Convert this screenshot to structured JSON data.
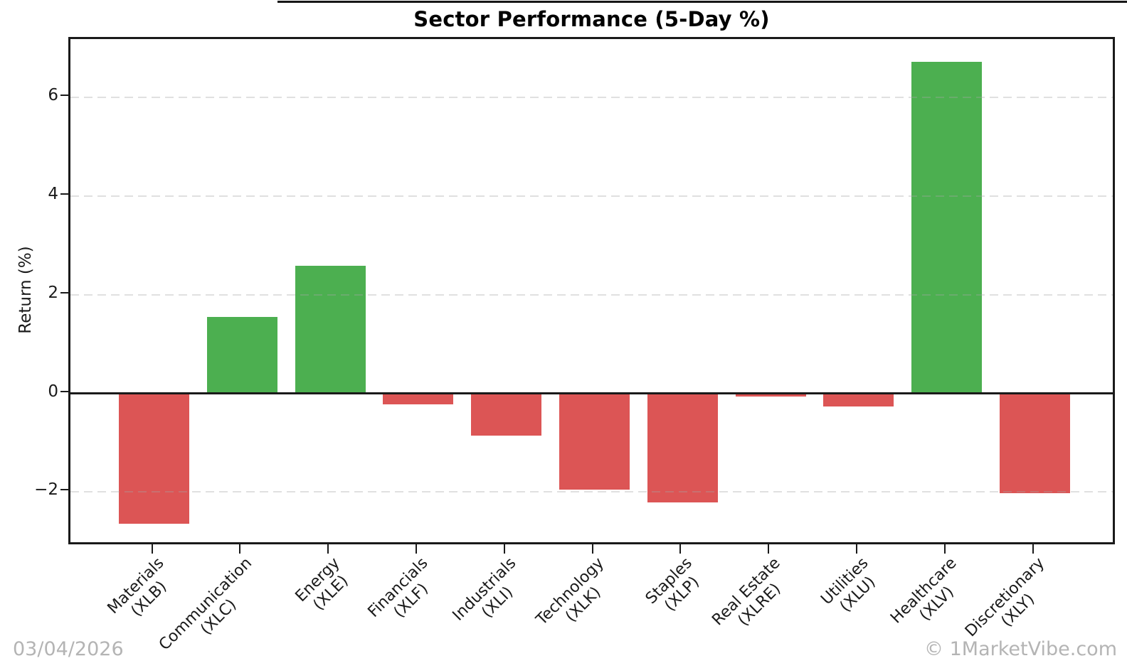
{
  "chart_data": {
    "type": "bar",
    "title": "Sector Performance (5-Day %)",
    "xlabel": "",
    "ylabel": "Return (%)",
    "categories": [
      "Materials",
      "Communication",
      "Energy",
      "Financials",
      "Industrials",
      "Technology",
      "Staples",
      "Real Estate",
      "Utilities",
      "Healthcare",
      "Discretionary"
    ],
    "tickers": [
      "(XLB)",
      "(XLC)",
      "(XLE)",
      "(XLF)",
      "(XLI)",
      "(XLK)",
      "(XLP)",
      "(XLRE)",
      "(XLU)",
      "(XLV)",
      "(XLY)"
    ],
    "values": [
      -2.64,
      1.55,
      2.59,
      -0.22,
      -0.86,
      -1.95,
      -2.21,
      -0.06,
      -0.27,
      6.72,
      -2.02
    ],
    "yticks": [
      {
        "value": -2,
        "label": "−2"
      },
      {
        "value": 0,
        "label": "0"
      },
      {
        "value": 2,
        "label": "2"
      },
      {
        "value": 4,
        "label": "4"
      },
      {
        "value": 6,
        "label": "6"
      }
    ],
    "ylim": [
      -3.1,
      7.2
    ],
    "grid": "horizontal-dashed",
    "legend_position": "none",
    "colors": {
      "positive": "#4caf50",
      "negative": "#dc5555"
    }
  },
  "footer": {
    "date": "03/04/2026",
    "copyright": "© 1MarketVibe.com"
  }
}
